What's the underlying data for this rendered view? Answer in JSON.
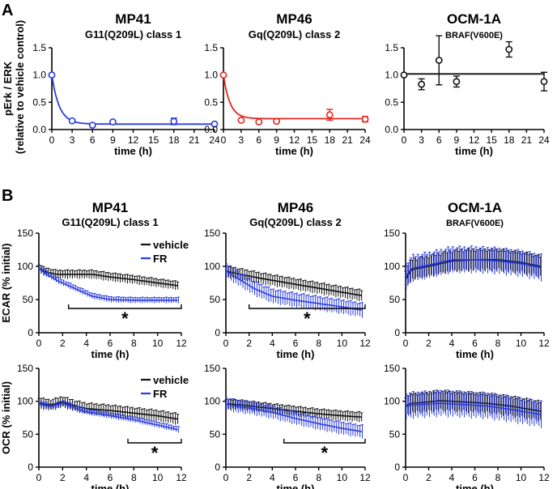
{
  "panel_labels": {
    "a": "A",
    "b": "B"
  },
  "colors": {
    "blue": "#2b3de0",
    "red": "#e8251c",
    "black": "#111111"
  },
  "chart_data": [
    {
      "id": "a1",
      "type": "scatter",
      "title": "MP41",
      "subtitle": "G11(Q209L) class 1",
      "xlabel": "time (h)",
      "ylabel": "pErk / ERK",
      "ylabel2": "(relative to vehicle control)",
      "xlim": [
        0,
        24
      ],
      "ylim": [
        0,
        1.5
      ],
      "xticks": [
        "0",
        "3",
        "6",
        "9",
        "12",
        "15",
        "18",
        "21",
        "24"
      ],
      "yticks": [
        "0.0",
        "0.5",
        "1.0",
        "1.5"
      ],
      "series": [
        {
          "name": "MP41",
          "color": "#2b3de0",
          "fit": "decay",
          "plateau": 0.1,
          "points": [
            {
              "x": 0,
              "y": 1.0,
              "err": 0.02
            },
            {
              "x": 3,
              "y": 0.16,
              "err": 0.02
            },
            {
              "x": 6,
              "y": 0.08,
              "err": 0.02
            },
            {
              "x": 9,
              "y": 0.14,
              "err": 0.02
            },
            {
              "x": 18,
              "y": 0.15,
              "err": 0.06
            },
            {
              "x": 24,
              "y": 0.1,
              "err": 0.02
            }
          ]
        }
      ]
    },
    {
      "id": "a2",
      "type": "scatter",
      "title": "MP46",
      "subtitle": "Gq(Q209L) class 2",
      "xlabel": "time (h)",
      "xlim": [
        0,
        24
      ],
      "ylim": [
        0,
        1.5
      ],
      "xticks": [
        "0",
        "3",
        "6",
        "9",
        "12",
        "15",
        "18",
        "21",
        "24"
      ],
      "yticks": [
        "0.0",
        "0.5",
        "1.0",
        "1.5"
      ],
      "series": [
        {
          "name": "MP46",
          "color": "#e8251c",
          "fit": "decay",
          "plateau": 0.2,
          "points": [
            {
              "x": 0,
              "y": 1.0,
              "err": 0.02
            },
            {
              "x": 3,
              "y": 0.17,
              "err": 0.02
            },
            {
              "x": 6,
              "y": 0.14,
              "err": 0.02
            },
            {
              "x": 9,
              "y": 0.15,
              "err": 0.02
            },
            {
              "x": 18,
              "y": 0.27,
              "err": 0.1
            },
            {
              "x": 24,
              "y": 0.19,
              "err": 0.05
            }
          ]
        }
      ]
    },
    {
      "id": "a3",
      "type": "scatter",
      "title": "OCM-1A",
      "subtitle": "BRAF(V600E)",
      "xlabel": "time (h)",
      "xlim": [
        0,
        24
      ],
      "ylim": [
        0,
        1.5
      ],
      "xticks": [
        "0",
        "3",
        "6",
        "9",
        "12",
        "15",
        "18",
        "21",
        "24"
      ],
      "yticks": [
        "0.0",
        "0.5",
        "1.0",
        "1.5"
      ],
      "series": [
        {
          "name": "OCM-1A",
          "color": "#111111",
          "fit": "flat",
          "level": 1.02,
          "points": [
            {
              "x": 0,
              "y": 1.0,
              "err": 0.02
            },
            {
              "x": 3,
              "y": 0.83,
              "err": 0.1
            },
            {
              "x": 6,
              "y": 1.27,
              "err": 0.45
            },
            {
              "x": 9,
              "y": 0.88,
              "err": 0.1
            },
            {
              "x": 18,
              "y": 1.47,
              "err": 0.14
            },
            {
              "x": 24,
              "y": 0.88,
              "err": 0.17
            }
          ]
        }
      ]
    },
    {
      "id": "b1",
      "type": "line",
      "title": "MP41",
      "subtitle": "G11(Q209L) class 1",
      "xlabel": "time (h)",
      "ylabel": "ECAR (% initial)",
      "xlim": [
        0,
        12
      ],
      "ylim": [
        0,
        150
      ],
      "xticks": [
        "0",
        "2",
        "4",
        "6",
        "8",
        "10",
        "12"
      ],
      "yticks": [
        "0",
        "50",
        "100",
        "150"
      ],
      "legend": [
        "vehicle",
        "FR"
      ],
      "significance": {
        "x_start": 2.5,
        "x_end": 12,
        "label": "*"
      },
      "series": [
        {
          "name": "vehicle",
          "color": "#111111",
          "err": 6,
          "values": [
            [
              0,
              97
            ],
            [
              0.5,
              92
            ],
            [
              1.5,
              88
            ],
            [
              3,
              88
            ],
            [
              4.5,
              88
            ],
            [
              6,
              84
            ],
            [
              8,
              80
            ],
            [
              10,
              75
            ],
            [
              11.7,
              71
            ]
          ]
        },
        {
          "name": "FR",
          "color": "#2b3de0",
          "err": 4,
          "values": [
            [
              0,
              97
            ],
            [
              0.5,
              90
            ],
            [
              1.5,
              79
            ],
            [
              3,
              67
            ],
            [
              4.5,
              55
            ],
            [
              6,
              50
            ],
            [
              8,
              49
            ],
            [
              10,
              49
            ],
            [
              11.7,
              49
            ]
          ]
        }
      ]
    },
    {
      "id": "b2",
      "type": "line",
      "title": "MP46",
      "subtitle": "Gq(Q209L) class 2",
      "xlabel": "time (h)",
      "xlim": [
        0,
        12
      ],
      "ylim": [
        0,
        150
      ],
      "xticks": [
        "0",
        "2",
        "4",
        "6",
        "8",
        "10",
        "12"
      ],
      "yticks": [
        "0",
        "50",
        "100",
        "150"
      ],
      "significance": {
        "x_start": 2,
        "x_end": 12,
        "label": "*"
      },
      "series": [
        {
          "name": "vehicle",
          "color": "#111111",
          "err": 8,
          "values": [
            [
              0,
              93
            ],
            [
              1,
              89
            ],
            [
              3,
              82
            ],
            [
              5,
              76
            ],
            [
              7,
              70
            ],
            [
              9,
              64
            ],
            [
              11.7,
              56
            ]
          ]
        },
        {
          "name": "FR",
          "color": "#2b3de0",
          "err": 10,
          "values": [
            [
              0,
              93
            ],
            [
              1,
              82
            ],
            [
              2.5,
              66
            ],
            [
              4,
              55
            ],
            [
              6,
              49
            ],
            [
              8,
              44
            ],
            [
              10,
              39
            ],
            [
              11.7,
              34
            ]
          ]
        }
      ]
    },
    {
      "id": "b3",
      "type": "line",
      "title": "OCM-1A",
      "subtitle": "BRAF(V600E)",
      "xlabel": "time (h)",
      "xlim": [
        0,
        12
      ],
      "ylim": [
        0,
        150
      ],
      "xticks": [
        "0",
        "2",
        "4",
        "6",
        "8",
        "10",
        "12"
      ],
      "yticks": [
        "0",
        "50",
        "100",
        "150"
      ],
      "series": [
        {
          "name": "vehicle",
          "color": "#111111",
          "err": 15,
          "values": [
            [
              0,
              80
            ],
            [
              0.5,
              95
            ],
            [
              2,
              100
            ],
            [
              4,
              108
            ],
            [
              6,
              110
            ],
            [
              8,
              110
            ],
            [
              10,
              106
            ],
            [
              11.7,
              100
            ]
          ]
        },
        {
          "name": "FR",
          "color": "#2b3de0",
          "err": 18,
          "values": [
            [
              0,
              85
            ],
            [
              0.5,
              97
            ],
            [
              2,
              102
            ],
            [
              4,
              110
            ],
            [
              6,
              110
            ],
            [
              8,
              108
            ],
            [
              10,
              104
            ],
            [
              11.7,
              98
            ]
          ]
        }
      ]
    },
    {
      "id": "c1",
      "type": "line",
      "xlabel": "time (h)",
      "ylabel": "OCR (% initial)",
      "xlim": [
        0,
        12
      ],
      "ylim": [
        0,
        150
      ],
      "xticks": [
        "0",
        "2",
        "4",
        "6",
        "8",
        "10",
        "12"
      ],
      "yticks": [
        "0",
        "50",
        "100",
        "150"
      ],
      "legend": [
        "vehicle",
        "FR"
      ],
      "significance": {
        "x_start": 7.5,
        "x_end": 12,
        "label": "*"
      },
      "series": [
        {
          "name": "vehicle",
          "color": "#111111",
          "err": 8,
          "values": [
            [
              0,
              97
            ],
            [
              1,
              94
            ],
            [
              2,
              99
            ],
            [
              3,
              93
            ],
            [
              4,
              89
            ],
            [
              6,
              86
            ],
            [
              8,
              82
            ],
            [
              10,
              78
            ],
            [
              11.7,
              73
            ]
          ]
        },
        {
          "name": "FR",
          "color": "#2b3de0",
          "err": 4,
          "values": [
            [
              0,
              96
            ],
            [
              1,
              92
            ],
            [
              2,
              97
            ],
            [
              3,
              90
            ],
            [
              4,
              84
            ],
            [
              6,
              78
            ],
            [
              8,
              72
            ],
            [
              10,
              64
            ],
            [
              11.7,
              57
            ]
          ]
        }
      ]
    },
    {
      "id": "c2",
      "type": "line",
      "xlabel": "time (h)",
      "xlim": [
        0,
        12
      ],
      "ylim": [
        0,
        150
      ],
      "xticks": [
        "0",
        "2",
        "4",
        "6",
        "8",
        "10",
        "12"
      ],
      "yticks": [
        "0",
        "50",
        "100",
        "150"
      ],
      "significance": {
        "x_start": 5,
        "x_end": 12,
        "label": "*"
      },
      "series": [
        {
          "name": "vehicle",
          "color": "#111111",
          "err": 7,
          "values": [
            [
              0,
              96
            ],
            [
              1,
              95
            ],
            [
              2,
              93
            ],
            [
              4,
              89
            ],
            [
              6,
              85
            ],
            [
              8,
              81
            ],
            [
              10,
              78
            ],
            [
              11.7,
              76
            ]
          ]
        },
        {
          "name": "FR",
          "color": "#2b3de0",
          "err": 9,
          "values": [
            [
              0,
              96
            ],
            [
              1,
              92
            ],
            [
              2,
              90
            ],
            [
              4,
              83
            ],
            [
              6,
              74
            ],
            [
              8,
              66
            ],
            [
              10,
              59
            ],
            [
              11.7,
              54
            ]
          ]
        }
      ]
    },
    {
      "id": "c3",
      "type": "line",
      "xlabel": "time (h)",
      "xlim": [
        0,
        12
      ],
      "ylim": [
        0,
        150
      ],
      "xticks": [
        "0",
        "2",
        "4",
        "6",
        "8",
        "10",
        "12"
      ],
      "yticks": [
        "0",
        "50",
        "100",
        "150"
      ],
      "series": [
        {
          "name": "vehicle",
          "color": "#111111",
          "err": 14,
          "values": [
            [
              0,
              93
            ],
            [
              0.5,
              97
            ],
            [
              1.5,
              98
            ],
            [
              3,
              101
            ],
            [
              5,
              99
            ],
            [
              7,
              97
            ],
            [
              9,
              93
            ],
            [
              11.7,
              85
            ]
          ]
        },
        {
          "name": "FR",
          "color": "#2b3de0",
          "err": 18,
          "values": [
            [
              0,
              92
            ],
            [
              0.5,
              94
            ],
            [
              1.5,
              95
            ],
            [
              3,
              97
            ],
            [
              5,
              95
            ],
            [
              7,
              93
            ],
            [
              9,
              88
            ],
            [
              11.7,
              80
            ]
          ]
        }
      ]
    }
  ]
}
